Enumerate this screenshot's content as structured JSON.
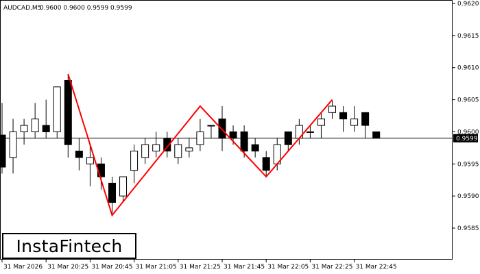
{
  "header": {
    "symbol": "AUDCAD,M5",
    "ohlc": "0.9600 0.9600 0.9599 0.9599"
  },
  "logo": {
    "text": "InstaFintech"
  },
  "chart_data": {
    "type": "candlestick",
    "symbol": "AUDCAD",
    "timeframe": "M5",
    "y_ticks": [
      "0.9620",
      "0.9615",
      "0.9610",
      "0.9605",
      "0.9600",
      "0.9595",
      "0.9590",
      "0.9585"
    ],
    "ylim": [
      0.95805,
      0.962
    ],
    "x_tick_labels": [
      "31 Mar 2026",
      "31 Mar 20:25",
      "31 Mar 20:45",
      "31 Mar 21:05",
      "31 Mar 21:25",
      "31 Mar 21:45",
      "31 Mar 22:05",
      "31 Mar 22:25",
      "31 Mar 22:45"
    ],
    "x_tick_bar_index": [
      0,
      4,
      8,
      12,
      16,
      20,
      24,
      28,
      32
    ],
    "current_price": "0.9599",
    "current_price_value": 0.9599,
    "candles": [
      {
        "o": 0.95995,
        "h": 0.96045,
        "l": 0.95935,
        "c": 0.95945
      },
      {
        "o": 0.9596,
        "h": 0.9602,
        "l": 0.95935,
        "c": 0.96
      },
      {
        "o": 0.96,
        "h": 0.9602,
        "l": 0.9598,
        "c": 0.9601
      },
      {
        "o": 0.96,
        "h": 0.96045,
        "l": 0.9599,
        "c": 0.9602
      },
      {
        "o": 0.9601,
        "h": 0.9605,
        "l": 0.9599,
        "c": 0.96
      },
      {
        "o": 0.96,
        "h": 0.9607,
        "l": 0.9599,
        "c": 0.9607
      },
      {
        "o": 0.9608,
        "h": 0.9609,
        "l": 0.9596,
        "c": 0.9598
      },
      {
        "o": 0.9597,
        "h": 0.9599,
        "l": 0.9594,
        "c": 0.9596
      },
      {
        "o": 0.9595,
        "h": 0.9598,
        "l": 0.95915,
        "c": 0.9596
      },
      {
        "o": 0.9595,
        "h": 0.9596,
        "l": 0.9591,
        "c": 0.9593
      },
      {
        "o": 0.9592,
        "h": 0.9593,
        "l": 0.9587,
        "c": 0.9589
      },
      {
        "o": 0.959,
        "h": 0.9593,
        "l": 0.9589,
        "c": 0.9593
      },
      {
        "o": 0.9594,
        "h": 0.9598,
        "l": 0.9592,
        "c": 0.9597
      },
      {
        "o": 0.9596,
        "h": 0.9599,
        "l": 0.9595,
        "c": 0.9598
      },
      {
        "o": 0.9597,
        "h": 0.96,
        "l": 0.9596,
        "c": 0.9598
      },
      {
        "o": 0.9599,
        "h": 0.96,
        "l": 0.9596,
        "c": 0.9597
      },
      {
        "o": 0.9596,
        "h": 0.9599,
        "l": 0.9595,
        "c": 0.9598
      },
      {
        "o": 0.9597,
        "h": 0.9599,
        "l": 0.9596,
        "c": 0.95975
      },
      {
        "o": 0.9598,
        "h": 0.9602,
        "l": 0.9597,
        "c": 0.96
      },
      {
        "o": 0.9601,
        "h": 0.9601,
        "l": 0.9599,
        "c": 0.9601
      },
      {
        "o": 0.9602,
        "h": 0.9604,
        "l": 0.9597,
        "c": 0.9599
      },
      {
        "o": 0.96,
        "h": 0.9601,
        "l": 0.9598,
        "c": 0.9599
      },
      {
        "o": 0.96,
        "h": 0.9601,
        "l": 0.9596,
        "c": 0.9597
      },
      {
        "o": 0.9598,
        "h": 0.9599,
        "l": 0.9596,
        "c": 0.9597
      },
      {
        "o": 0.9596,
        "h": 0.9597,
        "l": 0.9593,
        "c": 0.9594
      },
      {
        "o": 0.9595,
        "h": 0.9599,
        "l": 0.9594,
        "c": 0.9598
      },
      {
        "o": 0.96,
        "h": 0.96,
        "l": 0.9597,
        "c": 0.9598
      },
      {
        "o": 0.9599,
        "h": 0.9602,
        "l": 0.9598,
        "c": 0.9601
      },
      {
        "o": 0.96,
        "h": 0.9601,
        "l": 0.9599,
        "c": 0.96
      },
      {
        "o": 0.9601,
        "h": 0.9603,
        "l": 0.9599,
        "c": 0.9602
      },
      {
        "o": 0.9603,
        "h": 0.9605,
        "l": 0.9602,
        "c": 0.9604
      },
      {
        "o": 0.9603,
        "h": 0.9604,
        "l": 0.96,
        "c": 0.9602
      },
      {
        "o": 0.9601,
        "h": 0.9604,
        "l": 0.96,
        "c": 0.9602
      },
      {
        "o": 0.9603,
        "h": 0.9603,
        "l": 0.9599,
        "c": 0.9601
      },
      {
        "o": 0.96,
        "h": 0.96,
        "l": 0.9599,
        "c": 0.9599
      }
    ],
    "pattern_line": [
      {
        "bar": 6,
        "price": 0.9609
      },
      {
        "bar": 10,
        "price": 0.9587
      },
      {
        "bar": 18,
        "price": 0.9604
      },
      {
        "bar": 24,
        "price": 0.9593
      },
      {
        "bar": 30,
        "price": 0.9605
      }
    ],
    "colors": {
      "pattern": "#ff0000",
      "bull_body": "#ffffff",
      "bear_body": "#000000",
      "outline": "#000000",
      "price_label_bg": "#000000",
      "price_label_text": "#ffffff"
    }
  }
}
